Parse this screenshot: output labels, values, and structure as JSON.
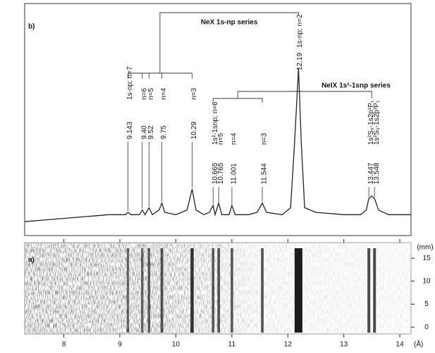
{
  "chart_data": [
    {
      "type": "line",
      "panel_label": "b)",
      "color": "#222222",
      "xlim": [
        7.3,
        14.2
      ],
      "ylim": [
        0,
        100
      ],
      "x": [
        7.3,
        7.8,
        8.3,
        8.8,
        9.1,
        9.143,
        9.2,
        9.35,
        9.4,
        9.45,
        9.52,
        9.58,
        9.7,
        9.75,
        9.8,
        10.0,
        10.2,
        10.29,
        10.36,
        10.5,
        10.6,
        10.665,
        10.7,
        10.765,
        10.82,
        10.95,
        11.001,
        11.06,
        11.3,
        11.45,
        11.544,
        11.62,
        11.9,
        12.05,
        12.12,
        12.19,
        12.24,
        12.3,
        12.5,
        13.0,
        13.3,
        13.4,
        13.447,
        13.5,
        13.548,
        13.62,
        13.8,
        14.2
      ],
      "values": [
        6,
        7,
        8,
        9,
        9,
        10,
        9,
        9,
        11,
        9,
        12,
        9,
        11,
        14,
        10,
        9,
        11,
        20,
        11,
        9,
        10,
        13,
        9,
        14,
        9,
        9,
        13,
        9,
        9,
        10,
        14,
        10,
        9,
        12,
        40,
        72,
        40,
        12,
        10,
        9,
        9,
        11,
        16,
        17,
        16,
        11,
        9,
        9
      ],
      "series_labels": [
        "NeX 1s-np series",
        "NeIX 1s²-1snp series"
      ],
      "nex_lines": [
        {
          "transition": "1s-np; n=7",
          "wavelength": 9.143
        },
        {
          "transition": "n=6",
          "wavelength": {
            "value": 9.4,
            "label": "9.40"
          }
        },
        {
          "transition": "n=5",
          "wavelength": 9.52
        },
        {
          "transition": "n=4",
          "wavelength": 9.75
        },
        {
          "transition": "n=3",
          "wavelength": 10.29
        },
        {
          "transition": "1s-np; n=2",
          "wavelength": 12.19
        }
      ],
      "neix_lines": [
        {
          "transition": "1s²-1snp; n=6",
          "wavelength": 10.665
        },
        {
          "transition": "n=5",
          "wavelength": 10.765
        },
        {
          "transition": "n=4",
          "wavelength": 11.001
        },
        {
          "transition": "n=3",
          "wavelength": 11.544
        },
        {
          "transition": "1s²S₀-1s2p¹P₁",
          "wavelength": 13.447
        },
        {
          "transition": "1s²S₀-1s2p³P₁",
          "wavelength": 13.548
        }
      ]
    },
    {
      "type": "image",
      "panel_label": "a)",
      "xlim": [
        7.3,
        14.2
      ],
      "xticks": [
        8,
        9,
        10,
        11,
        12,
        13,
        14
      ],
      "xlabel": "(Å)",
      "ylim": [
        -1.5,
        18.4
      ],
      "yticks": [
        0,
        5,
        10,
        15
      ],
      "ylabel": "(mm)"
    }
  ]
}
